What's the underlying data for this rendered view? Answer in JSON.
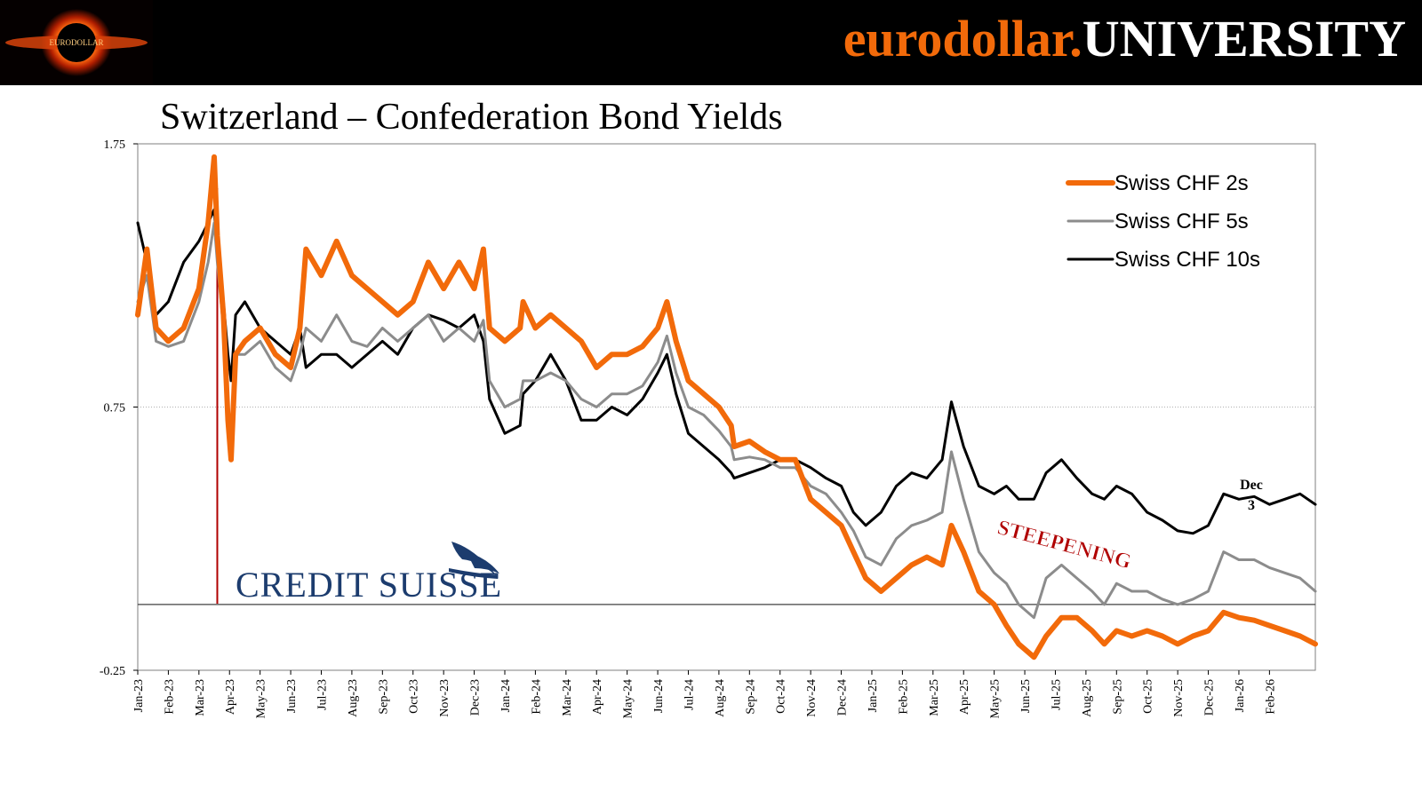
{
  "header": {
    "brand_left": "eurodollar.",
    "brand_right": "UNIVERSITY",
    "logo_icon": "black-hole-icon",
    "logo_text": "EURODOLLAR"
  },
  "chart_data": {
    "type": "line",
    "title": "Switzerland – Confederation Bond Yields",
    "ylim": [
      -0.25,
      1.75
    ],
    "yticks": [
      "1.75",
      "0.75",
      "-0.25"
    ],
    "ytick_values": [
      1.75,
      0.75,
      -0.25
    ],
    "x_labels": [
      "Jan-23",
      "Feb-23",
      "Mar-23",
      "Apr-23",
      "May-23",
      "Jun-23",
      "Jul-23",
      "Aug-23",
      "Sep-23",
      "Oct-23",
      "Nov-23",
      "Dec-23",
      "Jan-24",
      "Feb-24",
      "Mar-24",
      "Apr-24",
      "May-24",
      "Jun-24",
      "Jul-24",
      "Aug-24",
      "Sep-24",
      "Oct-24",
      "Nov-24",
      "Dec-24",
      "Jan-25",
      "Feb-25",
      "Mar-25",
      "Apr-25",
      "May-25",
      "Jun-25",
      "Jul-25",
      "Aug-25",
      "Sep-25",
      "Oct-25",
      "Nov-25",
      "Dec-25",
      "Jan-26",
      "Feb-26"
    ],
    "x_range_months": [
      0,
      38.5
    ],
    "zero_line": 0.0,
    "gridlines": [
      0.75
    ],
    "series": [
      {
        "name": "Swiss CHF 2s",
        "color": "#f26a0a",
        "points": [
          [
            0,
            1.1
          ],
          [
            0.3,
            1.35
          ],
          [
            0.6,
            1.05
          ],
          [
            1.0,
            1.0
          ],
          [
            1.5,
            1.05
          ],
          [
            2.0,
            1.2
          ],
          [
            2.3,
            1.45
          ],
          [
            2.5,
            1.7
          ],
          [
            2.6,
            1.4
          ],
          [
            2.8,
            1.1
          ],
          [
            2.95,
            0.7
          ],
          [
            3.05,
            0.55
          ],
          [
            3.2,
            0.95
          ],
          [
            3.5,
            1.0
          ],
          [
            4.0,
            1.05
          ],
          [
            4.5,
            0.95
          ],
          [
            5.0,
            0.9
          ],
          [
            5.3,
            1.05
          ],
          [
            5.5,
            1.35
          ],
          [
            6.0,
            1.25
          ],
          [
            6.5,
            1.38
          ],
          [
            7.0,
            1.25
          ],
          [
            7.5,
            1.2
          ],
          [
            8.0,
            1.15
          ],
          [
            8.5,
            1.1
          ],
          [
            9.0,
            1.15
          ],
          [
            9.5,
            1.3
          ],
          [
            10.0,
            1.2
          ],
          [
            10.5,
            1.3
          ],
          [
            11.0,
            1.2
          ],
          [
            11.3,
            1.35
          ],
          [
            11.5,
            1.05
          ],
          [
            12.0,
            1.0
          ],
          [
            12.5,
            1.05
          ],
          [
            12.6,
            1.15
          ],
          [
            13.0,
            1.05
          ],
          [
            13.5,
            1.1
          ],
          [
            14.0,
            1.05
          ],
          [
            14.5,
            1.0
          ],
          [
            15.0,
            0.9
          ],
          [
            15.5,
            0.95
          ],
          [
            16.0,
            0.95
          ],
          [
            16.5,
            0.98
          ],
          [
            17.0,
            1.05
          ],
          [
            17.3,
            1.15
          ],
          [
            17.6,
            1.0
          ],
          [
            18.0,
            0.85
          ],
          [
            18.5,
            0.8
          ],
          [
            19.0,
            0.75
          ],
          [
            19.4,
            0.68
          ],
          [
            19.5,
            0.6
          ],
          [
            20.0,
            0.62
          ],
          [
            20.5,
            0.58
          ],
          [
            21.0,
            0.55
          ],
          [
            21.5,
            0.55
          ],
          [
            22.0,
            0.4
          ],
          [
            22.5,
            0.35
          ],
          [
            23.0,
            0.3
          ],
          [
            23.4,
            0.2
          ],
          [
            23.8,
            0.1
          ],
          [
            24.3,
            0.05
          ],
          [
            24.8,
            0.1
          ],
          [
            25.3,
            0.15
          ],
          [
            25.8,
            0.18
          ],
          [
            26.3,
            0.15
          ],
          [
            26.6,
            0.3
          ],
          [
            27.0,
            0.2
          ],
          [
            27.5,
            0.05
          ],
          [
            28.0,
            0.0
          ],
          [
            28.4,
            -0.08
          ],
          [
            28.8,
            -0.15
          ],
          [
            29.3,
            -0.2
          ],
          [
            29.7,
            -0.12
          ],
          [
            30.2,
            -0.05
          ],
          [
            30.7,
            -0.05
          ],
          [
            31.2,
            -0.1
          ],
          [
            31.6,
            -0.15
          ],
          [
            32.0,
            -0.1
          ],
          [
            32.5,
            -0.12
          ],
          [
            33.0,
            -0.1
          ],
          [
            33.5,
            -0.12
          ],
          [
            34.0,
            -0.15
          ],
          [
            34.5,
            -0.12
          ],
          [
            35.0,
            -0.1
          ],
          [
            35.5,
            -0.03
          ],
          [
            36.0,
            -0.05
          ],
          [
            36.5,
            -0.06
          ],
          [
            37.0,
            -0.08
          ],
          [
            37.5,
            -0.1
          ],
          [
            38.0,
            -0.12
          ],
          [
            38.5,
            -0.15
          ]
        ]
      },
      {
        "name": "Swiss CHF 5s",
        "color": "#8c8c8c",
        "points": [
          [
            0,
            1.15
          ],
          [
            0.3,
            1.25
          ],
          [
            0.6,
            1.0
          ],
          [
            1.0,
            0.98
          ],
          [
            1.5,
            1.0
          ],
          [
            2.0,
            1.15
          ],
          [
            2.3,
            1.3
          ],
          [
            2.5,
            1.45
          ],
          [
            2.6,
            1.3
          ],
          [
            2.8,
            1.05
          ],
          [
            2.95,
            0.75
          ],
          [
            3.05,
            0.6
          ],
          [
            3.2,
            0.95
          ],
          [
            3.5,
            0.95
          ],
          [
            4.0,
            1.0
          ],
          [
            4.5,
            0.9
          ],
          [
            5.0,
            0.85
          ],
          [
            5.3,
            0.95
          ],
          [
            5.5,
            1.05
          ],
          [
            6.0,
            1.0
          ],
          [
            6.5,
            1.1
          ],
          [
            7.0,
            1.0
          ],
          [
            7.5,
            0.98
          ],
          [
            8.0,
            1.05
          ],
          [
            8.5,
            1.0
          ],
          [
            9.0,
            1.05
          ],
          [
            9.5,
            1.1
          ],
          [
            10.0,
            1.0
          ],
          [
            10.5,
            1.05
          ],
          [
            11.0,
            1.0
          ],
          [
            11.3,
            1.08
          ],
          [
            11.5,
            0.85
          ],
          [
            12.0,
            0.75
          ],
          [
            12.5,
            0.78
          ],
          [
            12.6,
            0.85
          ],
          [
            13.0,
            0.85
          ],
          [
            13.5,
            0.88
          ],
          [
            14.0,
            0.85
          ],
          [
            14.5,
            0.78
          ],
          [
            15.0,
            0.75
          ],
          [
            15.5,
            0.8
          ],
          [
            16.0,
            0.8
          ],
          [
            16.5,
            0.83
          ],
          [
            17.0,
            0.92
          ],
          [
            17.3,
            1.02
          ],
          [
            17.6,
            0.88
          ],
          [
            18.0,
            0.75
          ],
          [
            18.5,
            0.72
          ],
          [
            19.0,
            0.66
          ],
          [
            19.4,
            0.6
          ],
          [
            19.5,
            0.55
          ],
          [
            20.0,
            0.56
          ],
          [
            20.5,
            0.55
          ],
          [
            21.0,
            0.52
          ],
          [
            21.5,
            0.52
          ],
          [
            22.0,
            0.45
          ],
          [
            22.5,
            0.42
          ],
          [
            23.0,
            0.35
          ],
          [
            23.4,
            0.28
          ],
          [
            23.8,
            0.18
          ],
          [
            24.3,
            0.15
          ],
          [
            24.8,
            0.25
          ],
          [
            25.3,
            0.3
          ],
          [
            25.8,
            0.32
          ],
          [
            26.3,
            0.35
          ],
          [
            26.6,
            0.58
          ],
          [
            27.0,
            0.4
          ],
          [
            27.5,
            0.2
          ],
          [
            28.0,
            0.12
          ],
          [
            28.4,
            0.08
          ],
          [
            28.8,
            0.0
          ],
          [
            29.3,
            -0.05
          ],
          [
            29.7,
            0.1
          ],
          [
            30.2,
            0.15
          ],
          [
            30.7,
            0.1
          ],
          [
            31.2,
            0.05
          ],
          [
            31.6,
            0.0
          ],
          [
            32.0,
            0.08
          ],
          [
            32.5,
            0.05
          ],
          [
            33.0,
            0.05
          ],
          [
            33.5,
            0.02
          ],
          [
            34.0,
            0.0
          ],
          [
            34.5,
            0.02
          ],
          [
            35.0,
            0.05
          ],
          [
            35.5,
            0.2
          ],
          [
            36.0,
            0.17
          ],
          [
            36.5,
            0.17
          ],
          [
            37.0,
            0.14
          ],
          [
            37.5,
            0.12
          ],
          [
            38.0,
            0.1
          ],
          [
            38.5,
            0.05
          ]
        ]
      },
      {
        "name": "Swiss CHF 10s",
        "color": "#000000",
        "points": [
          [
            0,
            1.45
          ],
          [
            0.3,
            1.3
          ],
          [
            0.6,
            1.1
          ],
          [
            1.0,
            1.15
          ],
          [
            1.5,
            1.3
          ],
          [
            2.0,
            1.38
          ],
          [
            2.3,
            1.45
          ],
          [
            2.5,
            1.5
          ],
          [
            2.6,
            1.35
          ],
          [
            2.8,
            1.15
          ],
          [
            2.95,
            0.95
          ],
          [
            3.05,
            0.85
          ],
          [
            3.2,
            1.1
          ],
          [
            3.5,
            1.15
          ],
          [
            4.0,
            1.05
          ],
          [
            4.5,
            1.0
          ],
          [
            5.0,
            0.95
          ],
          [
            5.3,
            1.05
          ],
          [
            5.5,
            0.9
          ],
          [
            6.0,
            0.95
          ],
          [
            6.5,
            0.95
          ],
          [
            7.0,
            0.9
          ],
          [
            7.5,
            0.95
          ],
          [
            8.0,
            1.0
          ],
          [
            8.5,
            0.95
          ],
          [
            9.0,
            1.05
          ],
          [
            9.5,
            1.1
          ],
          [
            10.0,
            1.08
          ],
          [
            10.5,
            1.05
          ],
          [
            11.0,
            1.1
          ],
          [
            11.3,
            1.0
          ],
          [
            11.5,
            0.78
          ],
          [
            12.0,
            0.65
          ],
          [
            12.5,
            0.68
          ],
          [
            12.6,
            0.8
          ],
          [
            13.0,
            0.85
          ],
          [
            13.5,
            0.95
          ],
          [
            14.0,
            0.85
          ],
          [
            14.5,
            0.7
          ],
          [
            15.0,
            0.7
          ],
          [
            15.5,
            0.75
          ],
          [
            16.0,
            0.72
          ],
          [
            16.5,
            0.78
          ],
          [
            17.0,
            0.88
          ],
          [
            17.3,
            0.95
          ],
          [
            17.6,
            0.8
          ],
          [
            18.0,
            0.65
          ],
          [
            18.5,
            0.6
          ],
          [
            19.0,
            0.55
          ],
          [
            19.4,
            0.5
          ],
          [
            19.5,
            0.48
          ],
          [
            20.0,
            0.5
          ],
          [
            20.5,
            0.52
          ],
          [
            21.0,
            0.55
          ],
          [
            21.5,
            0.55
          ],
          [
            22.0,
            0.52
          ],
          [
            22.5,
            0.48
          ],
          [
            23.0,
            0.45
          ],
          [
            23.4,
            0.35
          ],
          [
            23.8,
            0.3
          ],
          [
            24.3,
            0.35
          ],
          [
            24.8,
            0.45
          ],
          [
            25.3,
            0.5
          ],
          [
            25.8,
            0.48
          ],
          [
            26.3,
            0.55
          ],
          [
            26.6,
            0.77
          ],
          [
            27.0,
            0.6
          ],
          [
            27.5,
            0.45
          ],
          [
            28.0,
            0.42
          ],
          [
            28.4,
            0.45
          ],
          [
            28.8,
            0.4
          ],
          [
            29.3,
            0.4
          ],
          [
            29.7,
            0.5
          ],
          [
            30.2,
            0.55
          ],
          [
            30.7,
            0.48
          ],
          [
            31.2,
            0.42
          ],
          [
            31.6,
            0.4
          ],
          [
            32.0,
            0.45
          ],
          [
            32.5,
            0.42
          ],
          [
            33.0,
            0.35
          ],
          [
            33.5,
            0.32
          ],
          [
            34.0,
            0.28
          ],
          [
            34.5,
            0.27
          ],
          [
            35.0,
            0.3
          ],
          [
            35.5,
            0.42
          ],
          [
            36.0,
            0.4
          ],
          [
            36.5,
            0.41
          ],
          [
            37.0,
            0.38
          ],
          [
            37.5,
            0.4
          ],
          [
            38.0,
            0.42
          ],
          [
            38.5,
            0.38
          ]
        ]
      }
    ],
    "annotations": {
      "steepening": "STEEPENING",
      "dec_line1": "Dec",
      "dec_line2": "3",
      "credit_suisse": "CREDIT SUISSE",
      "event_marker_x": 2.6
    },
    "legend_position": "top-right"
  }
}
